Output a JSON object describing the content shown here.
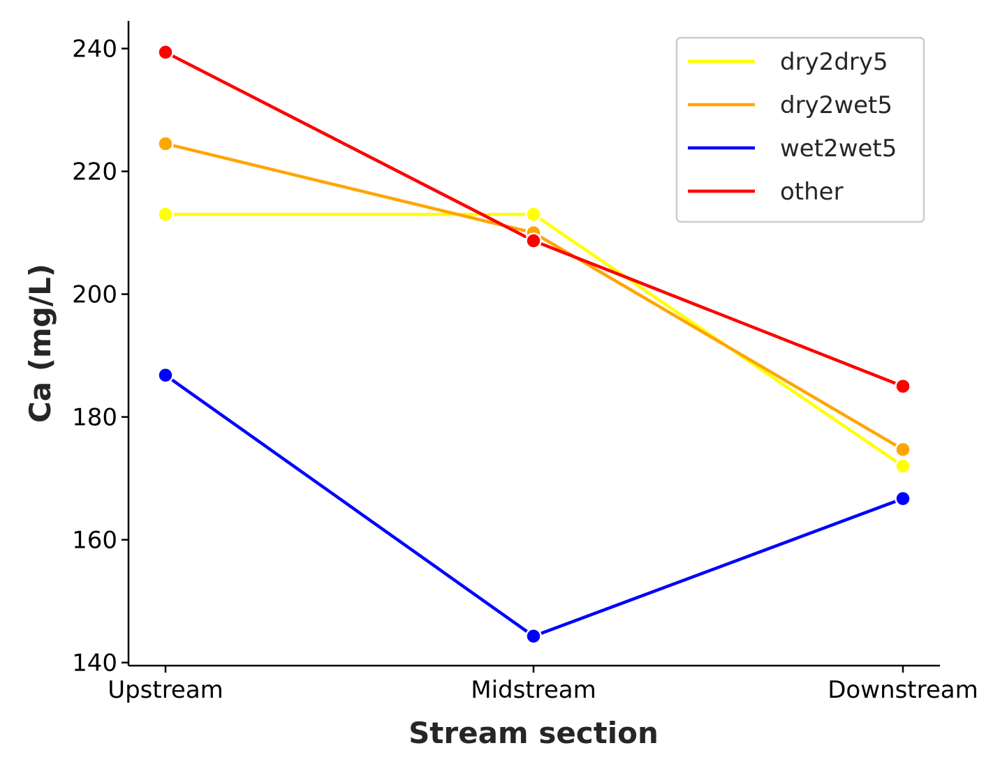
{
  "chart_data": {
    "type": "line",
    "title": "",
    "xlabel": "Stream section",
    "ylabel": "Ca (mg/L)",
    "categories": [
      "Upstream",
      "Midstream",
      "Downstream"
    ],
    "ylim": [
      139.5,
      244.5
    ],
    "yticks": [
      140,
      160,
      180,
      200,
      220,
      240
    ],
    "grid": false,
    "legend_position": "top-right",
    "series": [
      {
        "name": "dry2dry5",
        "color": "#FFFF00",
        "values": [
          213.0,
          213.0,
          172.0
        ]
      },
      {
        "name": "dry2wet5",
        "color": "#FFA500",
        "values": [
          224.5,
          210.0,
          174.7
        ]
      },
      {
        "name": "wet2wet5",
        "color": "#0000FF",
        "values": [
          186.8,
          144.3,
          166.7
        ]
      },
      {
        "name": "other",
        "color": "#FF0000",
        "values": [
          239.4,
          208.7,
          185.0
        ]
      }
    ]
  }
}
